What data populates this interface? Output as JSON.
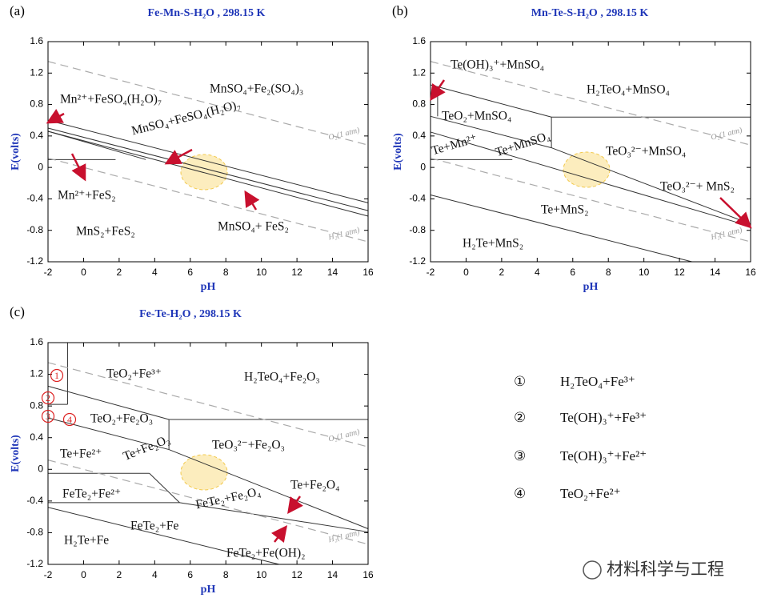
{
  "chart_data": [
    {
      "type": "pourbaix",
      "panel": "(a)",
      "title": "Fe-Mn-S-H₂O , 298.15 K",
      "xlabel": "pH",
      "ylabel": "E(volts)",
      "xlim": [
        -2,
        16
      ],
      "ylim": [
        -1.2,
        1.6
      ],
      "xticks": [
        -2,
        0,
        2,
        4,
        6,
        8,
        10,
        12,
        14,
        16
      ],
      "yticks": [
        -1.2,
        -0.8,
        -0.4,
        0,
        0.4,
        0.8,
        1.2,
        1.6
      ],
      "lines": [
        {
          "x": [
            -2,
            16
          ],
          "values": [
            0.6,
            -0.45
          ]
        },
        {
          "x": [
            -2,
            16
          ],
          "values": [
            0.5,
            -0.55
          ]
        },
        {
          "x": [
            -2,
            16
          ],
          "values": [
            0.46,
            -0.62
          ]
        },
        {
          "x": [
            -2,
            1.8
          ],
          "values": [
            0.1,
            0.1
          ]
        },
        {
          "x": [
            -2,
            3.5
          ],
          "values": [
            0.46,
            0.1
          ]
        },
        {
          "x": [
            -2,
            16
          ],
          "values": [
            1.348,
            0.284
          ],
          "dashed": true
        },
        {
          "x": [
            -2,
            16
          ],
          "values": [
            0.118,
            -0.946
          ],
          "dashed": true
        }
      ],
      "labels": [
        "Mn²⁺+FeSO₄(H₂O)₇",
        "MnSO₄+Fe₂(SO₄)₃",
        "MnSO₄+FeSO₄(H₂O)₇",
        "Mn²⁺+FeS₂",
        "MnS₂+FeS₂",
        "MnSO₄+ FeS₂"
      ],
      "water_labels": [
        "O₂(1 atm)",
        "H₂(1 atm)"
      ]
    },
    {
      "type": "pourbaix",
      "panel": "(b)",
      "title": "Mn-Te-S-H₂O , 298.15 K",
      "xlabel": "pH",
      "ylabel": "E(volts)",
      "xlim": [
        -2,
        16
      ],
      "ylim": [
        -1.2,
        1.6
      ],
      "xticks": [
        -2,
        0,
        2,
        4,
        6,
        8,
        10,
        12,
        14,
        16
      ],
      "yticks": [
        -1.2,
        -0.8,
        -0.4,
        0,
        0.4,
        0.8,
        1.2,
        1.6
      ],
      "lines": [
        {
          "x": [
            -1.6,
            -1.6
          ],
          "values": [
            1.03,
            0.65
          ]
        },
        {
          "x": [
            -2,
            4.8
          ],
          "values": [
            1.05,
            0.64
          ]
        },
        {
          "x": [
            4.8,
            16
          ],
          "values": [
            0.64,
            0.64
          ]
        },
        {
          "x": [
            4.8,
            4.8
          ],
          "values": [
            0.64,
            0.25
          ]
        },
        {
          "x": [
            -2,
            4.8
          ],
          "values": [
            0.65,
            0.25
          ]
        },
        {
          "x": [
            4.8,
            16
          ],
          "values": [
            0.25,
            -0.72
          ]
        },
        {
          "x": [
            -2,
            2.6
          ],
          "values": [
            0.1,
            0.1
          ]
        },
        {
          "x": [
            -2,
            16
          ],
          "values": [
            0.45,
            -0.75
          ]
        },
        {
          "x": [
            -2,
            12.7
          ],
          "values": [
            -0.35,
            -1.2
          ]
        },
        {
          "x": [
            -2,
            16
          ],
          "values": [
            1.348,
            0.284
          ],
          "dashed": true
        },
        {
          "x": [
            -2,
            16
          ],
          "values": [
            0.118,
            -0.946
          ],
          "dashed": true
        }
      ],
      "labels": [
        "Te(OH)₃⁺+MnSO₄",
        "H₂TeO₄+MnSO₄",
        "TeO₂+MnSO₄",
        "TeO₃²⁻+MnSO₄",
        "Te+Mn²⁺",
        "Te+MnSO₄",
        "TeO₃²⁻+ MnS₂",
        "Te+MnS₂",
        "H₂Te+MnS₂"
      ],
      "water_labels": [
        "O₂(1 atm)",
        "H₂(1 atm)"
      ]
    },
    {
      "type": "pourbaix",
      "panel": "(c)",
      "title": "Fe-Te-H₂O , 298.15 K",
      "xlabel": "pH",
      "ylabel": "E(volts)",
      "xlim": [
        -2,
        16
      ],
      "ylim": [
        -1.2,
        1.6
      ],
      "xticks": [
        -2,
        0,
        2,
        4,
        6,
        8,
        10,
        12,
        14,
        16
      ],
      "yticks": [
        -1.2,
        -0.8,
        -0.4,
        0,
        0.4,
        0.8,
        1.2,
        1.6
      ],
      "lines": [
        {
          "x": [
            -0.9,
            -0.9
          ],
          "values": [
            1.6,
            0.82
          ]
        },
        {
          "x": [
            -2,
            -0.9
          ],
          "values": [
            0.82,
            0.82
          ]
        },
        {
          "x": [
            -2,
            4.8
          ],
          "values": [
            1.05,
            0.63
          ]
        },
        {
          "x": [
            4.8,
            16
          ],
          "values": [
            0.63,
            0.63
          ]
        },
        {
          "x": [
            4.8,
            4.8
          ],
          "values": [
            0.63,
            0.25
          ]
        },
        {
          "x": [
            -2,
            4.8
          ],
          "values": [
            0.65,
            0.25
          ]
        },
        {
          "x": [
            4.8,
            16
          ],
          "values": [
            0.25,
            -0.75
          ]
        },
        {
          "x": [
            -2,
            3.7
          ],
          "values": [
            -0.05,
            -0.05
          ]
        },
        {
          "x": [
            3.7,
            5.4
          ],
          "values": [
            -0.05,
            -0.42
          ]
        },
        {
          "x": [
            -2,
            5.4
          ],
          "values": [
            -0.42,
            -0.42
          ]
        },
        {
          "x": [
            5.4,
            16
          ],
          "values": [
            -0.42,
            -0.79
          ]
        },
        {
          "x": [
            -2,
            11
          ],
          "values": [
            -0.48,
            -1.2
          ]
        },
        {
          "x": [
            -2,
            16
          ],
          "values": [
            1.348,
            0.284
          ],
          "dashed": true
        },
        {
          "x": [
            -2,
            16
          ],
          "values": [
            0.118,
            -0.946
          ],
          "dashed": true
        }
      ],
      "labels": [
        "TeO₂+Fe³⁺",
        "H₂TeO₄+Fe₂O₃",
        "TeO₂+Fe₂O₃",
        "TeO₃²⁻+Fe₂O₃",
        "Te+Fe²⁺",
        "Te+Fe₂O₃",
        "Te+Fe₂O₄",
        "FeTe₂+Fe²⁺",
        "FeTe₂+Fe₂O₄",
        "FeTe₂+Fe",
        "H₂Te+Fe",
        "FeTe₂+Fe(OH)₂"
      ],
      "markers": [
        "1",
        "2",
        "3",
        "4"
      ],
      "water_labels": [
        "O₂(1 atm)",
        "H₂(1 atm)"
      ]
    }
  ],
  "legend": [
    {
      "symbol": "①",
      "text": "H₂TeO₄+Fe³⁺"
    },
    {
      "symbol": "②",
      "text": "Te(OH)₃⁺+Fe³⁺"
    },
    {
      "symbol": "③",
      "text": "Te(OH)₃⁺+Fe²⁺"
    },
    {
      "symbol": "④",
      "text": "TeO₂+Fe²⁺"
    }
  ],
  "watermark": "材料科学与工程"
}
